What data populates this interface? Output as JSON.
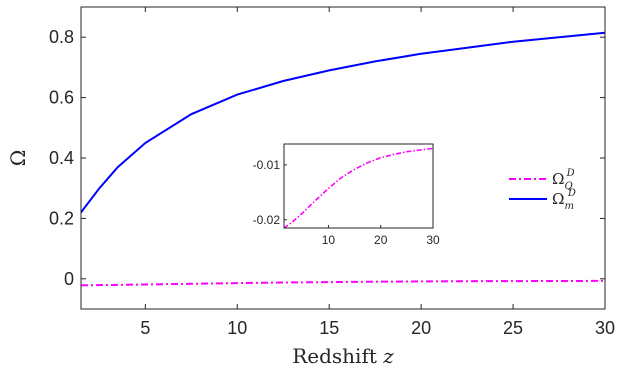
{
  "chart_data": {
    "type": "line",
    "xlabel": "Redshift",
    "xlabel_var": "z",
    "ylabel": "Ω",
    "xlim": [
      1.5,
      30
    ],
    "ylim": [
      -0.1,
      0.9
    ],
    "xticks": [
      "5",
      "10",
      "15",
      "20",
      "25",
      "30"
    ],
    "yticks": [
      "0",
      "0.2",
      "0.4",
      "0.6",
      "0.8"
    ],
    "grid": false,
    "legend_position": "right",
    "series": [
      {
        "name_base": "Ω",
        "name_sub": "Q",
        "name_sup": "D",
        "style": "dash-dot",
        "color": "#ff00ff",
        "x": [
          1.5,
          3,
          5,
          7.5,
          10,
          12.5,
          15,
          17.5,
          20,
          22.5,
          25,
          27.5,
          30
        ],
        "y": [
          -0.0215,
          -0.0205,
          -0.0188,
          -0.0165,
          -0.0143,
          -0.0123,
          -0.0108,
          -0.0096,
          -0.0087,
          -0.0081,
          -0.0076,
          -0.0073,
          -0.007
        ]
      },
      {
        "name_base": "Ω",
        "name_sub": "m",
        "name_sup": "D",
        "style": "solid",
        "color": "#0000ff",
        "x": [
          1.5,
          2.5,
          3.5,
          5,
          7.5,
          10,
          12.5,
          15,
          17.5,
          20,
          22.5,
          25,
          27.5,
          30
        ],
        "y": [
          0.22,
          0.3,
          0.37,
          0.45,
          0.545,
          0.61,
          0.655,
          0.69,
          0.72,
          0.745,
          0.765,
          0.785,
          0.8,
          0.815
        ]
      }
    ],
    "inset": {
      "xlim": [
        1.5,
        30
      ],
      "ylim": [
        -0.0215,
        -0.0062
      ],
      "xticks": [
        "10",
        "20",
        "30"
      ],
      "yticks": [
        "-0.01",
        "-0.02"
      ],
      "series_index": 0
    }
  }
}
